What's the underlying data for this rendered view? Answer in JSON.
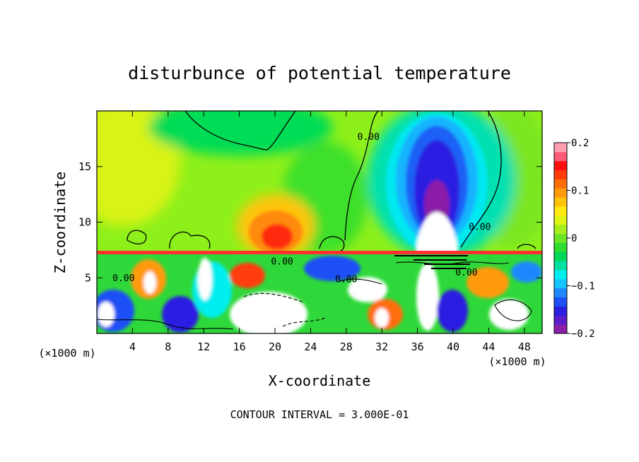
{
  "chart_data": {
    "type": "heatmap",
    "title": "disturbunce of potential temperature",
    "xlabel": "X-coordinate",
    "ylabel": "Z-coordinate",
    "x_unit_label": "(×1000 m)",
    "y_unit_label": "(×1000 m)",
    "xlim": [
      0,
      50
    ],
    "ylim": [
      0,
      20
    ],
    "x_ticks": [
      4,
      8,
      12,
      16,
      20,
      24,
      28,
      32,
      36,
      40,
      44,
      48
    ],
    "y_ticks": [
      5,
      10,
      15
    ],
    "colorbar": {
      "range": [
        -0.2,
        0.2
      ],
      "tick_values": [
        0.2,
        0.1,
        0,
        -0.1,
        -0.2
      ],
      "tick_labels": [
        "0.2",
        "0.1",
        "0",
        "−0.1",
        "−0.2"
      ],
      "colors": [
        "#8b1fa8",
        "#5a1ccc",
        "#2a1ee0",
        "#1f50f5",
        "#1f88ff",
        "#16c4ff",
        "#00eeee",
        "#00e0a0",
        "#00d85a",
        "#2fdc2f",
        "#6ce624",
        "#a8ee1e",
        "#e0f516",
        "#ffe90f",
        "#ffc40a",
        "#ff9a0a",
        "#ff6e0a",
        "#ff3c0a",
        "#ff1010",
        "#ff5a78",
        "#ffa0b2"
      ]
    },
    "annotations": [
      {
        "text": "0.00",
        "x": 30.5,
        "z": 17.4
      },
      {
        "text": "0.00",
        "x": 43.0,
        "z": 9.3
      },
      {
        "text": "0.00",
        "x": 3.0,
        "z": 4.7
      },
      {
        "text": "0.00",
        "x": 20.8,
        "z": 6.2
      },
      {
        "text": "0.00",
        "x": 28.0,
        "z": 4.6
      },
      {
        "text": "0.00",
        "x": 41.5,
        "z": 5.2
      }
    ],
    "contour_interval_text": "CONTOUR INTERVAL = 3.000E-01"
  }
}
